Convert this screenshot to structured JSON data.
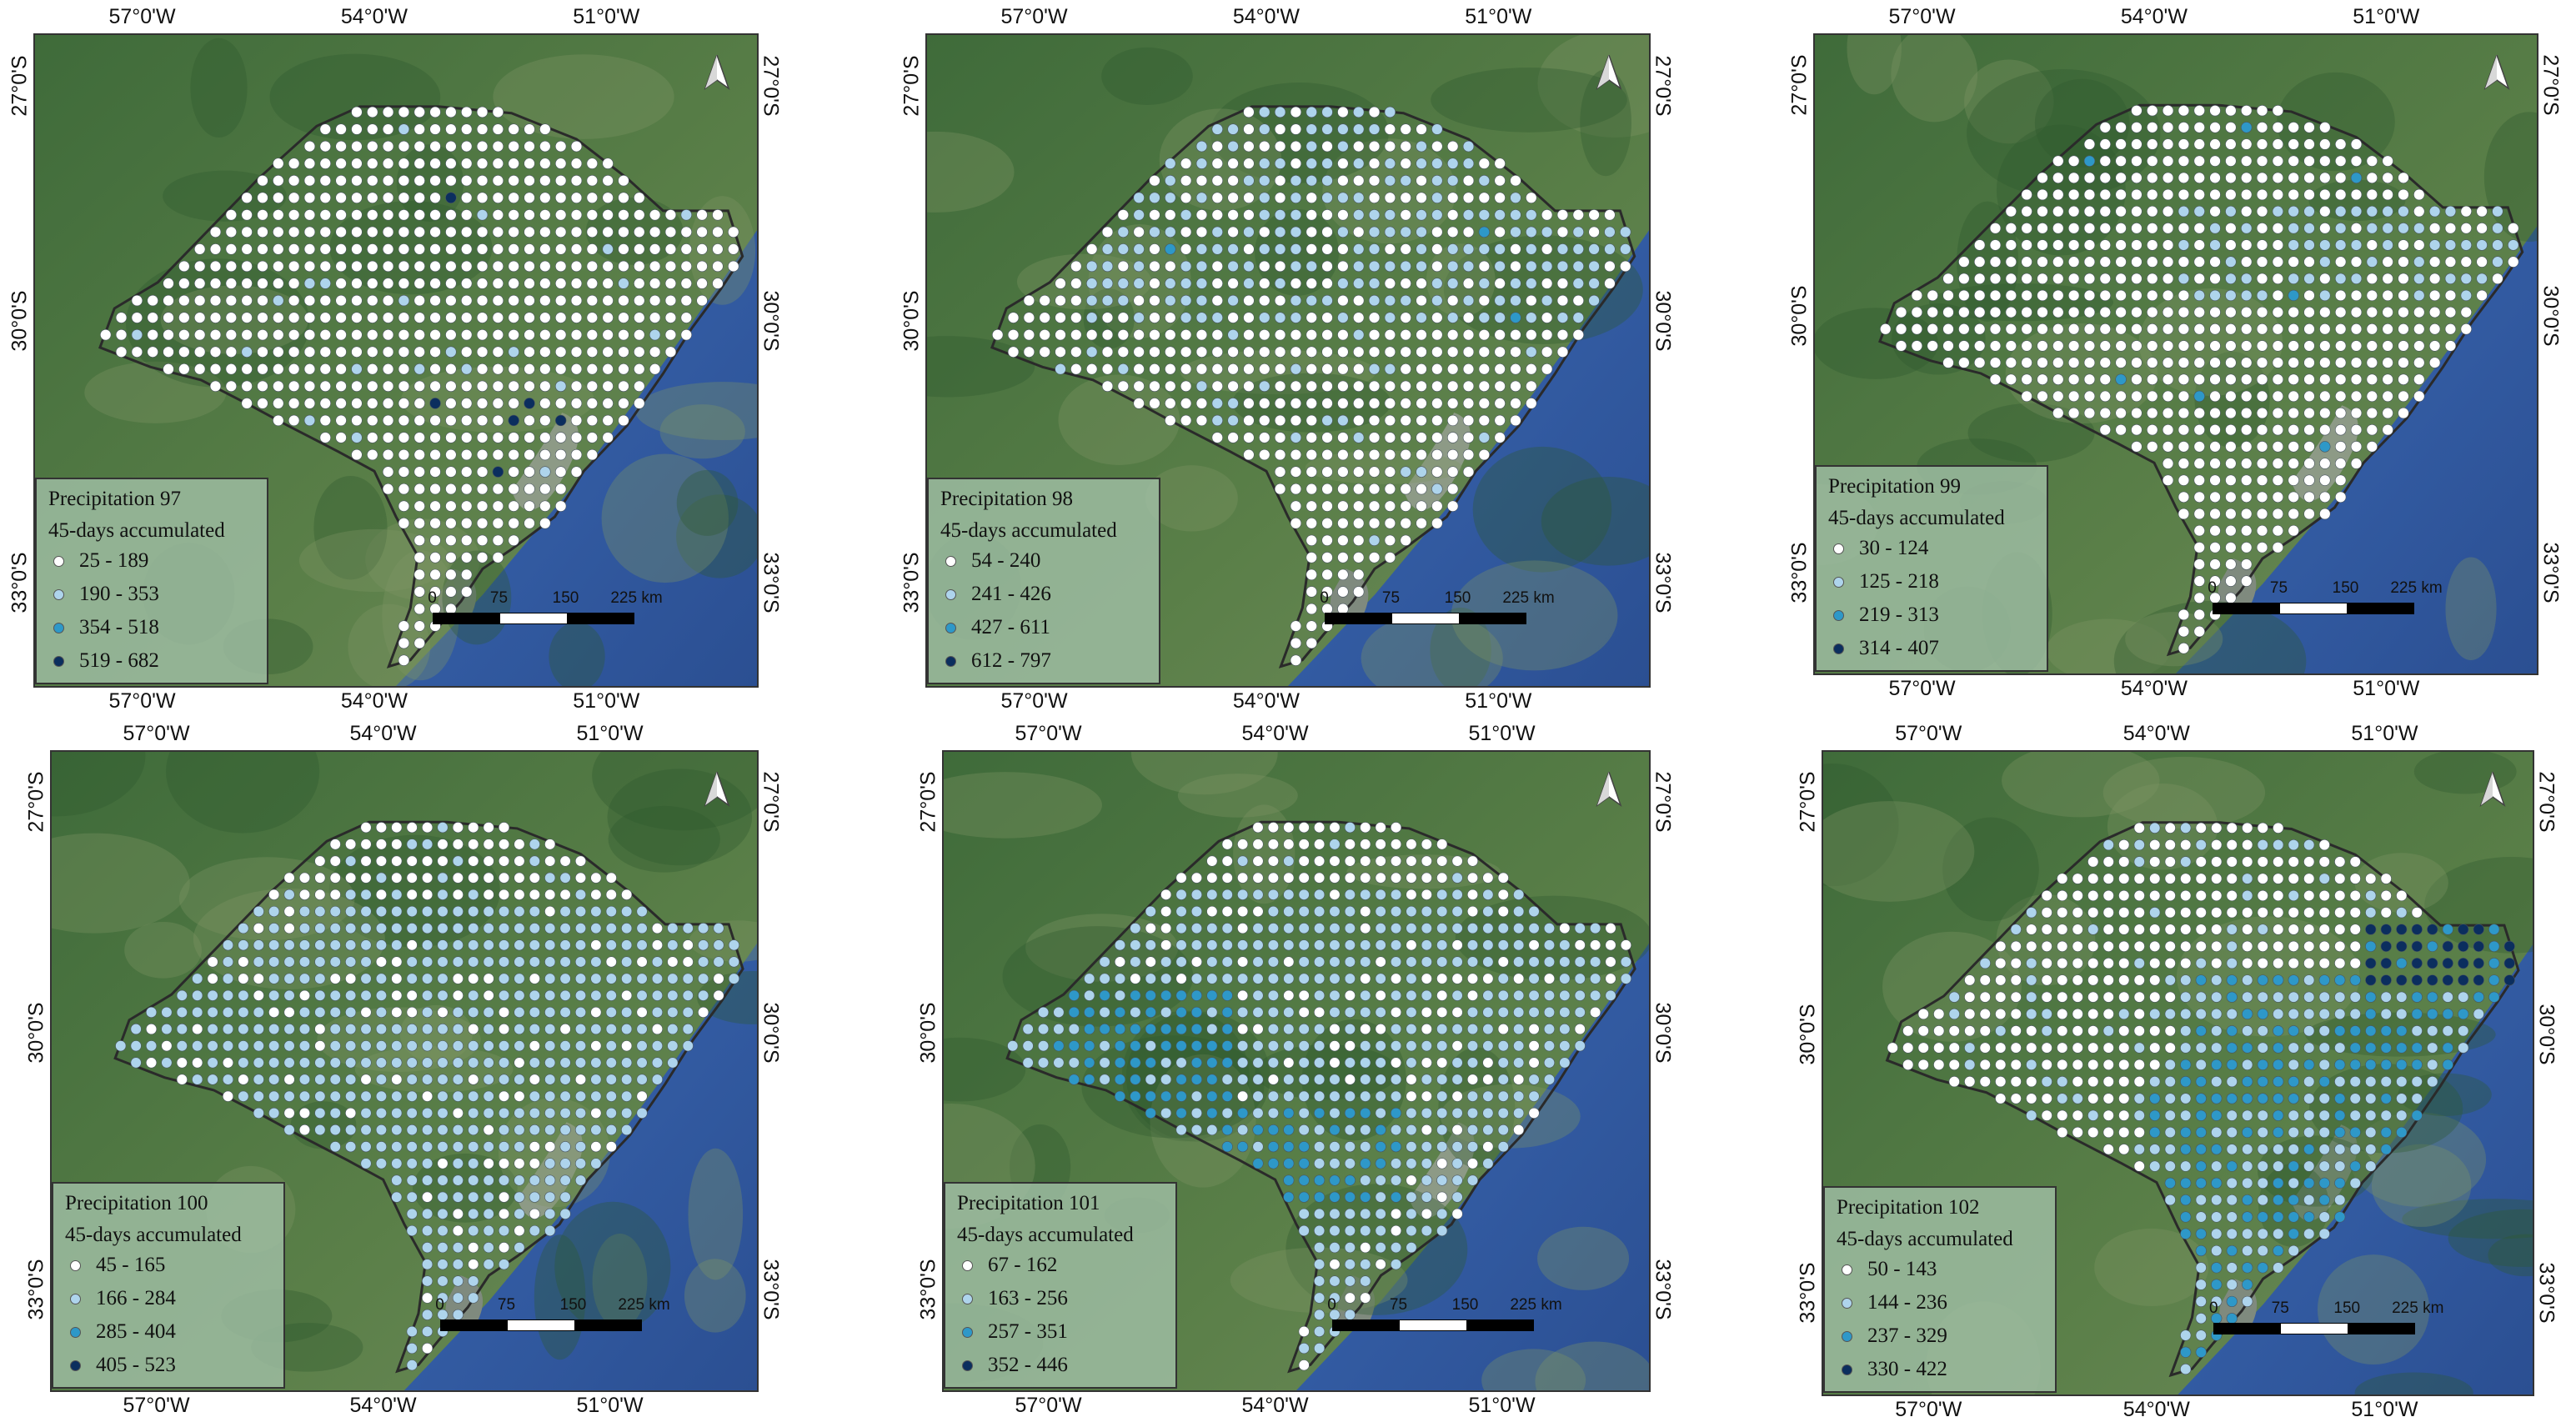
{
  "axis_labels": {
    "lon": [
      "57°0'W",
      "54°0'W",
      "51°0'W"
    ],
    "lat": [
      "27°0'S",
      "30°0'S",
      "33°0'S"
    ]
  },
  "scale_bar": {
    "ticks": [
      "0",
      "75",
      "150",
      "225 km"
    ]
  },
  "colors": {
    "class1": "#ffffff",
    "class2": "#aed4ec",
    "class3": "#2e98c8",
    "class4": "#0b2e5e"
  },
  "legend_subtitle": "45-days accumulated",
  "panels": [
    {
      "title": "Precipitation 97",
      "subtitle": "45-days accumulated",
      "classes": [
        "25 - 189",
        "190 - 353",
        "354 - 518",
        "519 - 682"
      ]
    },
    {
      "title": "Precipitation 98",
      "subtitle": "45-days accumulated",
      "classes": [
        "54 - 240",
        "241 - 426",
        "427 - 611",
        "612 - 797"
      ]
    },
    {
      "title": "Precipitation 99",
      "subtitle": "45-days accumulated",
      "classes": [
        "30 - 124",
        "125 - 218",
        "219 - 313",
        "314 - 407"
      ]
    },
    {
      "title": "Precipitation 100",
      "subtitle": "45-days accumulated",
      "classes": [
        "45 - 165",
        "166 - 284",
        "285 - 404",
        "405 - 523"
      ]
    },
    {
      "title": "Precipitation 101",
      "subtitle": "45-days accumulated",
      "classes": [
        "67 - 162",
        "163 - 256",
        "257 - 351",
        "352 - 446"
      ]
    },
    {
      "title": "Precipitation 102",
      "subtitle": "45-days accumulated",
      "classes": [
        "50 - 143",
        "144 - 236",
        "237 - 329",
        "330 - 422"
      ]
    }
  ]
}
